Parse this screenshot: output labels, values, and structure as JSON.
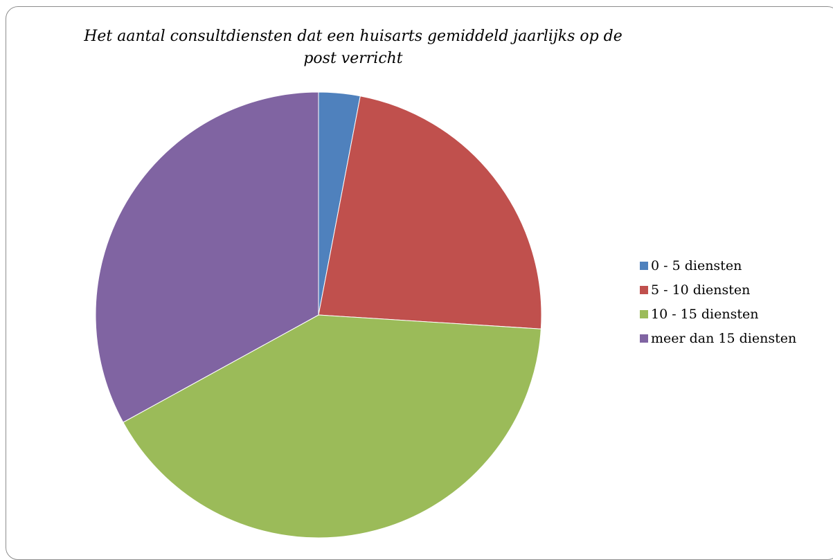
{
  "chart_data": {
    "type": "pie",
    "title": "Het aantal consultdiensten dat een huisarts gemiddeld jaarlijks op de post verricht",
    "legend_position": "right",
    "categories": [
      "0 - 5 diensten",
      "5 - 10 diensten",
      "10 - 15 diensten",
      "meer dan 15 diensten"
    ],
    "values": [
      3,
      23,
      41,
      33
    ],
    "colors": [
      "#4f81bd",
      "#c0504d",
      "#9bbb59",
      "#8064a2"
    ]
  }
}
